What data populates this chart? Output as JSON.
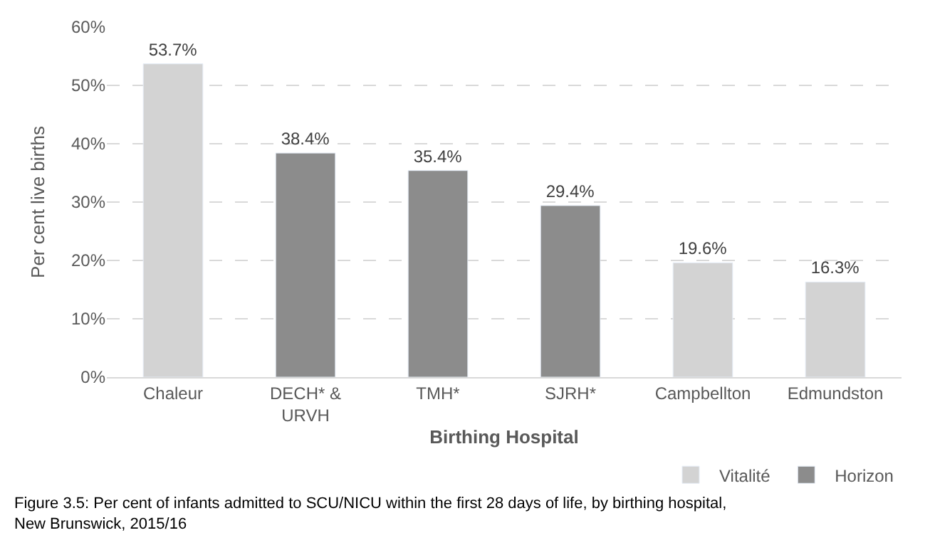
{
  "chart_data": {
    "type": "bar",
    "categories": [
      "Chaleur",
      "DECH* & URVH",
      "TMH*",
      "SJRH*",
      "Campbellton",
      "Edmundston"
    ],
    "series": [
      {
        "name": "Vitalité",
        "color": "#d3d3d3",
        "values": [
          53.7,
          null,
          null,
          null,
          19.6,
          16.3
        ]
      },
      {
        "name": "Horizon",
        "color": "#8c8c8c",
        "values": [
          null,
          38.4,
          35.4,
          29.4,
          null,
          null
        ]
      }
    ],
    "value_labels": [
      "53.7%",
      "38.4%",
      "35.4%",
      "29.4%",
      "19.6%",
      "16.3%"
    ],
    "xlabel": "Birthing Hospital",
    "ylabel": "Per cent live births",
    "ylim": [
      0,
      60
    ],
    "yticks": [
      {
        "value": 0,
        "label": "0%"
      },
      {
        "value": 10,
        "label": "10%"
      },
      {
        "value": 20,
        "label": "20%"
      },
      {
        "value": 30,
        "label": "30%"
      },
      {
        "value": 40,
        "label": "40%"
      },
      {
        "value": 50,
        "label": "50%"
      },
      {
        "value": 60,
        "label": "60%"
      }
    ],
    "grid": "y",
    "legend": "bottom right",
    "annotations": [
      "Figure 3.5: Per cent of infants admitted to SCU/NICU within the first 28 days of life, by birthing hospital, New Brunswick, 2015/16"
    ]
  }
}
